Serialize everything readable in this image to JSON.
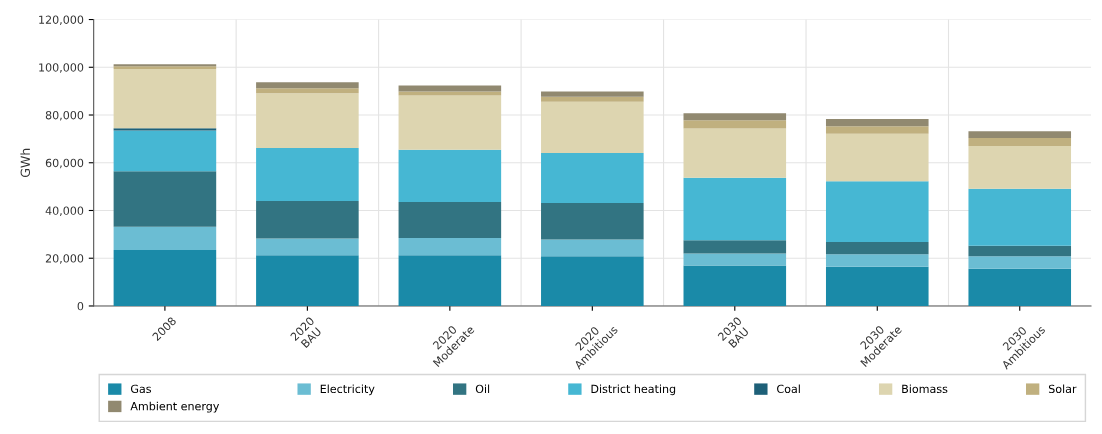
{
  "chart_data": {
    "type": "bar",
    "stacked": true,
    "ylabel": "GWh",
    "categories": [
      "2008",
      "2020\nBAU",
      "2020\nModerate",
      "2020\nAmbitious",
      "2030\nBAU",
      "2030\nModerate",
      "2030\nAmbitious"
    ],
    "series": [
      {
        "name": "Gas",
        "color": "#1a8aa8",
        "values": [
          23500,
          21200,
          21200,
          20800,
          17000,
          16400,
          15600
        ]
      },
      {
        "name": "Electricity",
        "color": "#6bbdd3",
        "values": [
          9700,
          7100,
          7300,
          7000,
          5000,
          5300,
          5200
        ]
      },
      {
        "name": "Oil",
        "color": "#327482",
        "values": [
          23200,
          15700,
          15100,
          15300,
          5500,
          5100,
          4400
        ]
      },
      {
        "name": "District heating",
        "color": "#46b7d3",
        "values": [
          17100,
          22200,
          21800,
          21000,
          26200,
          25500,
          23900
        ]
      },
      {
        "name": "Coal",
        "color": "#1e6078",
        "values": [
          1000,
          null,
          null,
          null,
          null,
          null,
          null
        ]
      },
      {
        "name": "Biomass",
        "color": "#ddd5b0",
        "values": [
          24800,
          22900,
          22800,
          21500,
          20700,
          19900,
          17900
        ]
      },
      {
        "name": "Solar",
        "color": "#c0b07f",
        "values": [
          1100,
          2100,
          1600,
          2000,
          3400,
          3100,
          3400
        ]
      },
      {
        "name": "Ambient energy",
        "color": "#918970",
        "values": [
          900,
          2500,
          2600,
          2200,
          2900,
          3000,
          2800
        ]
      }
    ],
    "ylim": [
      0,
      120000
    ],
    "yticks": [
      0,
      {
        "value": 20000,
        "label": "20,000"
      },
      {
        "value": 40000,
        "label": "40,000"
      },
      {
        "value": 60000,
        "label": "60,000"
      },
      {
        "value": 80000,
        "label": "80,000"
      },
      {
        "value": 100000,
        "label": "100,000"
      },
      {
        "value": 120000,
        "label": "120,000"
      }
    ],
    "grid": true,
    "legend": "bottom"
  }
}
